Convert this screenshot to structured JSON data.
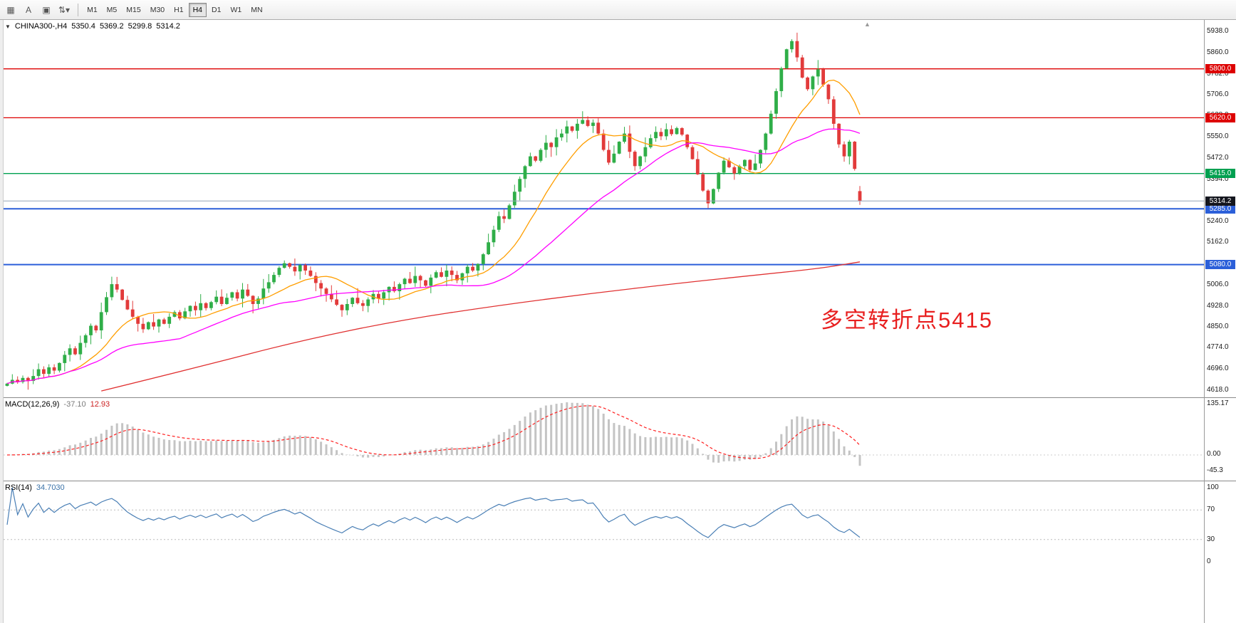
{
  "toolbar": {
    "icon_buttons": [
      {
        "name": "windows-grid-button",
        "glyph": "▦"
      },
      {
        "name": "annotate-text-button",
        "glyph": "A"
      },
      {
        "name": "object-list-button",
        "glyph": "▣"
      },
      {
        "name": "scale-dropdown-button",
        "glyph": "⇅▾"
      }
    ],
    "timeframes": [
      "M1",
      "M5",
      "M15",
      "M30",
      "H1",
      "H4",
      "D1",
      "W1",
      "MN"
    ],
    "active_timeframe": "H4"
  },
  "icons": {
    "collapse_caret": "▼",
    "chart_shift": "▲"
  },
  "main_chart": {
    "header": {
      "symbol_period": "CHINA300-,H4",
      "open": "5350.4",
      "high": "5369.2",
      "low": "5299.8",
      "close": "5314.2"
    },
    "annotation": {
      "text": "多空转折点5415",
      "color": "#e81f1f"
    }
  },
  "macd": {
    "label": "MACD(12,26,9)",
    "value_text": "-37.10",
    "signal_text": "12.93",
    "fast": 12,
    "slow": 26,
    "signal_period": 9,
    "axis": [
      "135.17",
      "0.00",
      "-45.3"
    ]
  },
  "rsi": {
    "label": "RSI(14)",
    "value_text": "34.7030",
    "period": 14,
    "axis": [
      "100",
      "70",
      "30",
      "0"
    ],
    "levels": [
      70,
      30
    ]
  },
  "chart_data": {
    "type": "candlestick",
    "symbol": "CHINA300-",
    "timeframe": "H4",
    "ohlc_current": {
      "open": 5350.4,
      "high": 5369.2,
      "low": 5299.8,
      "close": 5314.2
    },
    "closes": [
      4642,
      4656,
      4648,
      4663,
      4652,
      4670,
      4695,
      4678,
      4702,
      4690,
      4718,
      4748,
      4772,
      4750,
      4792,
      4820,
      4855,
      4838,
      4905,
      4960,
      5008,
      4988,
      4950,
      4915,
      4888,
      4862,
      4842,
      4868,
      4852,
      4878,
      4862,
      4888,
      4905,
      4882,
      4908,
      4928,
      4912,
      4938,
      4920,
      4942,
      4962,
      4935,
      4958,
      4978,
      4955,
      4988,
      4965,
      4935,
      4955,
      4992,
      5015,
      5042,
      5068,
      5085,
      5072,
      5055,
      5078,
      5058,
      5038,
      5012,
      4992,
      4972,
      4952,
      4932,
      4912,
      4935,
      4958,
      4938,
      4928,
      4952,
      4972,
      4955,
      4978,
      4998,
      4982,
      5008,
      5028,
      5012,
      5038,
      5022,
      5002,
      5032,
      5052,
      5035,
      5058,
      5042,
      5022,
      5048,
      5072,
      5058,
      5082,
      5118,
      5162,
      5208,
      5258,
      5248,
      5298,
      5348,
      5395,
      5442,
      5478,
      5462,
      5502,
      5528,
      5512,
      5548,
      5562,
      5588,
      5572,
      5598,
      5612,
      5590,
      5602,
      5562,
      5502,
      5455,
      5488,
      5532,
      5562,
      5495,
      5442,
      5478,
      5512,
      5545,
      5568,
      5552,
      5578,
      5560,
      5582,
      5558,
      5512,
      5468,
      5412,
      5352,
      5305,
      5358,
      5418,
      5462,
      5438,
      5415,
      5442,
      5465,
      5428,
      5452,
      5502,
      5562,
      5635,
      5718,
      5802,
      5872,
      5902,
      5842,
      5768,
      5725,
      5772,
      5798,
      5742,
      5688,
      5598,
      5522,
      5478,
      5532,
      5432,
      5314.2
    ],
    "levels": [
      {
        "price": 5800.0,
        "label": "5800.0",
        "color": "#dd0000",
        "weight": 1.3
      },
      {
        "price": 5620.0,
        "label": "5620.0",
        "color": "#dd0000",
        "weight": 1.3
      },
      {
        "price": 5415.0,
        "label": "5415.0",
        "color": "#00a050",
        "weight": 1.3
      },
      {
        "price": 5285.0,
        "label": "5285.0",
        "color": "#2b5fd9",
        "weight": 2
      },
      {
        "price": 5080.0,
        "label": "5080.0",
        "color": "#2b5fd9",
        "weight": 2
      }
    ],
    "current_price": {
      "value": 5314.2,
      "label": "5314.2"
    },
    "moving_averages": [
      {
        "name": "fast-ma",
        "period": 13,
        "color": "#ff9e00"
      },
      {
        "name": "medium-ma",
        "period": 34,
        "color": "#ff00ff"
      },
      {
        "name": "slow-ma",
        "color": "#e03030",
        "points": [
          [
            18,
            4615
          ],
          [
            37,
            4705
          ],
          [
            56,
            4800
          ],
          [
            75,
            4875
          ],
          [
            94,
            4930
          ],
          [
            112,
            4975
          ],
          [
            130,
            5015
          ],
          [
            145,
            5045
          ],
          [
            155,
            5065
          ],
          [
            163,
            5090
          ]
        ]
      }
    ],
    "y_axis_ticks": [
      "5938.0",
      "5860.0",
      "5782.0",
      "5706.0",
      "5628.0",
      "5550.0",
      "5472.0",
      "5394.0",
      "5240.0",
      "5162.0",
      "5084.0",
      "5006.0",
      "4928.0",
      "4850.0",
      "4774.0",
      "4696.0",
      "4618.0"
    ],
    "colors": {
      "up": "#2fae48",
      "down": "#e23b3b",
      "macd_bar": "#c4c4c4",
      "macd_signal": "#ff2020",
      "rsi_line": "#4a7fb5",
      "current_line": "#93a4b8",
      "current_badge": "#14161e"
    }
  }
}
